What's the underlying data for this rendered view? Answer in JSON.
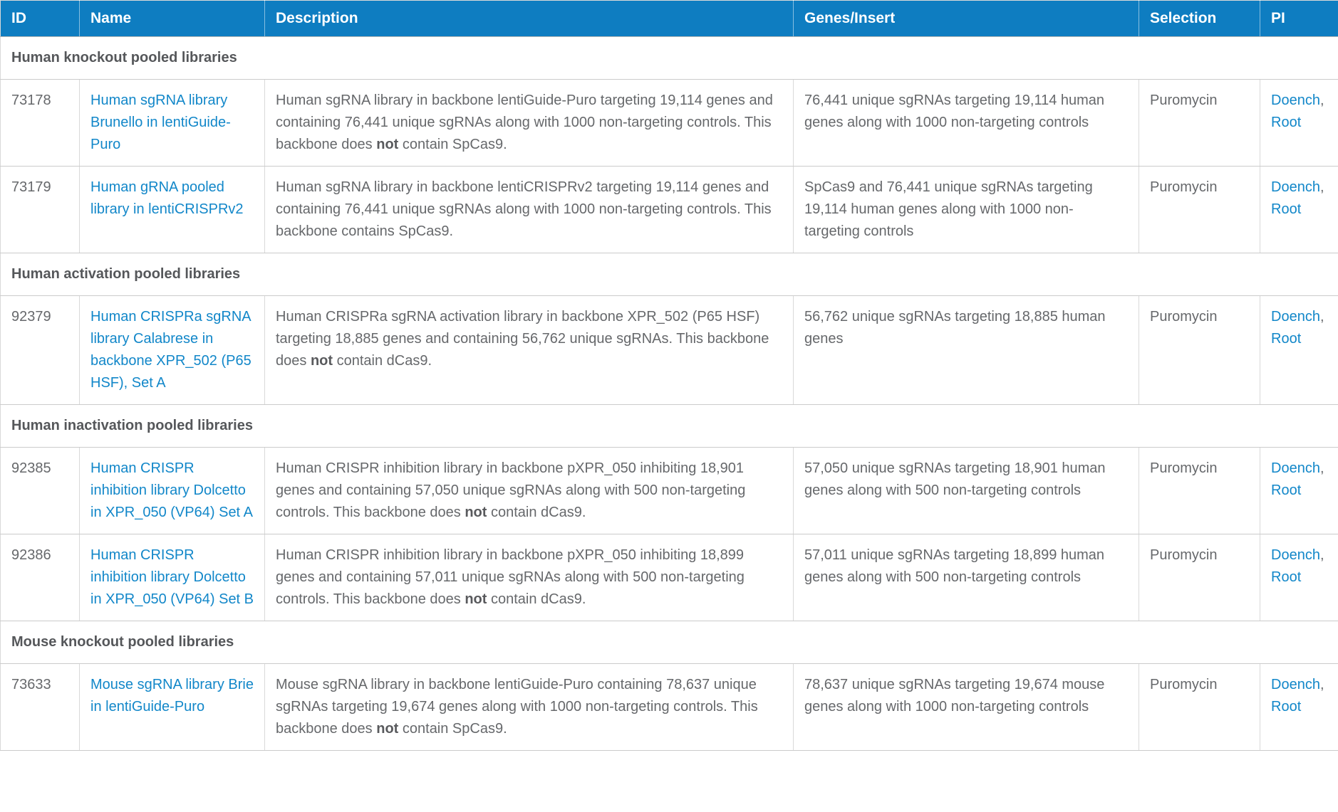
{
  "colors": {
    "header_bg": "#0e7dc1",
    "header_text": "#ffffff",
    "link": "#1287c9",
    "body_text": "#66686b",
    "section_text": "#55575a",
    "cell_border": "#d9d9d9",
    "row_border": "#cbcbcb"
  },
  "table": {
    "columns": [
      {
        "key": "id",
        "label": "ID"
      },
      {
        "key": "name",
        "label": "Name"
      },
      {
        "key": "description",
        "label": "Description"
      },
      {
        "key": "genes_insert",
        "label": "Genes/Insert"
      },
      {
        "key": "selection",
        "label": "Selection"
      },
      {
        "key": "pi",
        "label": "PI"
      }
    ],
    "pi_separator": ", ",
    "sections": [
      {
        "title": "Human knockout pooled libraries",
        "rows": [
          {
            "id": "73178",
            "name": "Human sgRNA library Brunello in lentiGuide-Puro",
            "desc_parts": [
              "Human sgRNA library in backbone lentiGuide-Puro targeting 19,114 genes and containing 76,441 unique sgRNAs along with 1000 non-targeting controls. This backbone does ",
              "not",
              " contain SpCas9."
            ],
            "genes_insert": "76,441 unique sgRNAs targeting 19,114 human genes along with 1000 non-targeting controls",
            "selection": "Puromycin",
            "pi": [
              "Doench",
              "Root"
            ]
          },
          {
            "id": "73179",
            "name": "Human gRNA pooled library in lentiCRISPRv2",
            "desc_parts": [
              "Human sgRNA library in backbone lentiCRISPRv2 targeting 19,114 genes and containing 76,441 unique sgRNAs along with 1000 non-targeting controls. This backbone contains SpCas9.",
              "",
              ""
            ],
            "genes_insert": "SpCas9 and 76,441 unique sgRNAs targeting 19,114 human genes along with 1000 non-targeting controls",
            "selection": "Puromycin",
            "pi": [
              "Doench",
              "Root"
            ]
          }
        ]
      },
      {
        "title": "Human activation pooled libraries",
        "rows": [
          {
            "id": "92379",
            "name": "Human CRISPRa sgRNA library Calabrese in backbone XPR_502 (P65 HSF), Set A",
            "desc_parts": [
              "Human CRISPRa sgRNA activation library in backbone XPR_502 (P65 HSF) targeting 18,885 genes and containing 56,762 unique sgRNAs. This backbone does ",
              "not",
              " contain dCas9."
            ],
            "genes_insert": "56,762 unique sgRNAs targeting 18,885 human genes",
            "selection": "Puromycin",
            "pi": [
              "Doench",
              "Root"
            ]
          }
        ]
      },
      {
        "title": "Human inactivation pooled libraries",
        "rows": [
          {
            "id": "92385",
            "name": "Human CRISPR inhibition library Dolcetto in XPR_050 (VP64) Set A",
            "desc_parts": [
              "Human CRISPR inhibition library in backbone pXPR_050 inhibiting 18,901 genes and containing 57,050 unique sgRNAs along with 500 non-targeting controls. This backbone does ",
              "not",
              " contain dCas9."
            ],
            "genes_insert": "57,050 unique sgRNAs targeting 18,901 human genes along with 500 non-targeting controls",
            "selection": "Puromycin",
            "pi": [
              "Doench",
              "Root"
            ]
          },
          {
            "id": "92386",
            "name": "Human CRISPR inhibition library Dolcetto in XPR_050 (VP64) Set B",
            "desc_parts": [
              "Human CRISPR inhibition library in backbone pXPR_050 inhibiting 18,899 genes and containing 57,011 unique sgRNAs along with 500 non-targeting controls. This backbone does ",
              "not",
              " contain dCas9."
            ],
            "genes_insert": "57,011 unique sgRNAs targeting 18,899 human genes along with 500 non-targeting controls",
            "selection": "Puromycin",
            "pi": [
              "Doench",
              "Root"
            ]
          }
        ]
      },
      {
        "title": "Mouse knockout pooled libraries",
        "rows": [
          {
            "id": "73633",
            "name": "Mouse sgRNA library Brie in lentiGuide-Puro",
            "desc_parts": [
              "Mouse sgRNA library in backbone lentiGuide-Puro containing 78,637 unique sgRNAs targeting 19,674 genes along with 1000 non-targeting controls. This backbone does ",
              "not",
              " contain SpCas9."
            ],
            "genes_insert": "78,637 unique sgRNAs targeting 19,674 mouse genes along with 1000 non-targeting controls",
            "selection": "Puromycin",
            "pi": [
              "Doench",
              "Root"
            ]
          }
        ]
      }
    ]
  }
}
